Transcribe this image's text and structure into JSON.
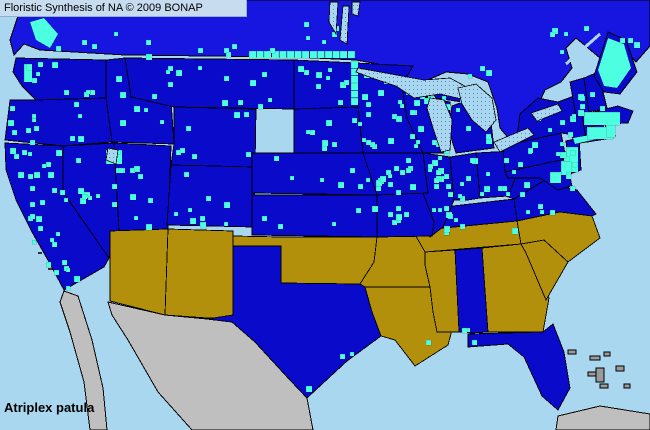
{
  "header": {
    "title": "Floristic Synthesis of NA © 2009 BONAP"
  },
  "footer": {
    "species": "Atriplex patula"
  },
  "map": {
    "water_color": "#a9d7ef",
    "title_box_color": "#c8dcf0",
    "colors": {
      "state_present": "#0a0aca",
      "canada_present": "#1616e0",
      "county_documented": "#4dffe0",
      "state_absent": "#b3900c",
      "outside_coverage": "#bfbfbf",
      "border": "#000000"
    },
    "legend_meaning": {
      "state_present": "Species present at state/province level (adventive)",
      "county_documented": "Species documented at county level",
      "state_absent": "Species not present in state",
      "outside_coverage": "Area outside floristic coverage (Mexico, Cuba, Bahamas)",
      "water": "Ocean / Great Lakes"
    },
    "states_present": [
      "WA",
      "OR",
      "CA",
      "NV",
      "ID",
      "MT",
      "WY",
      "UT",
      "CO",
      "ND",
      "SD",
      "NE",
      "KS",
      "TX",
      "MN",
      "IA",
      "MO",
      "WI",
      "IL",
      "MI",
      "IN",
      "OH",
      "KY",
      "WV",
      "VA",
      "PA",
      "NY",
      "NJ",
      "MD",
      "CT",
      "RI",
      "MA",
      "VT",
      "NH",
      "ME",
      "AL",
      "FL"
    ],
    "states_absent": [
      "AZ",
      "NM",
      "OK",
      "AR",
      "LA",
      "MS",
      "TN",
      "NC",
      "SC",
      "GA"
    ],
    "regions": {
      "canada": "present",
      "mexico": "not covered",
      "cuba": "not covered",
      "bahamas": "not covered"
    }
  }
}
